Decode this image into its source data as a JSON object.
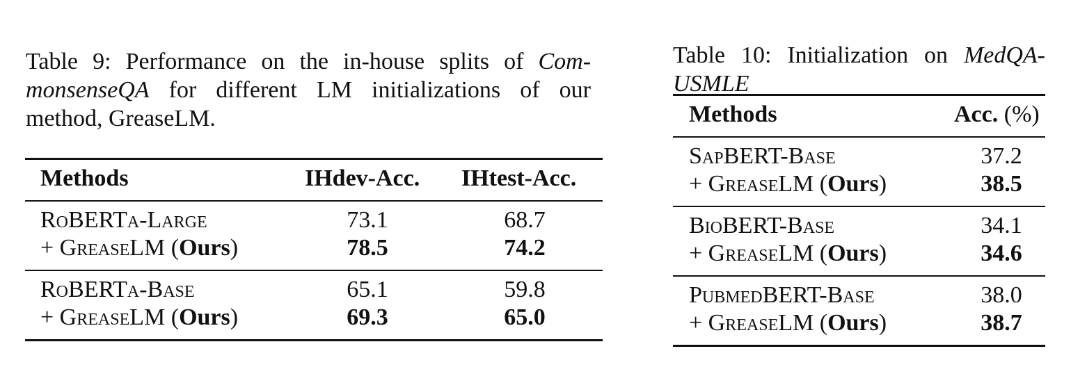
{
  "table9": {
    "caption": {
      "label": "Table 9:",
      "l1a": "Performance on the in-house splits of ",
      "l1b": "Com-",
      "l2a": "monsenseQA",
      "l2b": " for different LM initializations of our",
      "l3": "method, GreaseLM."
    },
    "headers": [
      "Methods",
      "IHdev-Acc.",
      "IHtest-Acc."
    ],
    "rows": [
      {
        "base": "RoBERTa-Large",
        "plus": "+ GreaseLM",
        "ours": "Ours",
        "dev_base": "73.1",
        "dev_ours": "78.5",
        "test_base": "68.7",
        "test_ours": "74.2"
      },
      {
        "base": "RoBERTa-Base",
        "plus": "+ GreaseLM",
        "ours": "Ours",
        "dev_base": "65.1",
        "dev_ours": "69.3",
        "test_base": "59.8",
        "test_ours": "65.0"
      }
    ]
  },
  "table10": {
    "caption": {
      "label": "Table 10:",
      "l1a": "Initialization on ",
      "l1b": "MedQA-",
      "l2": "USMLE"
    },
    "headers": {
      "methods": "Methods",
      "acc": "Acc.",
      "pct": "(%)"
    },
    "rows": [
      {
        "base": "SapBERT-Base",
        "plus": "+ GreaseLM",
        "ours": "Ours",
        "acc_base": "37.2",
        "acc_ours": "38.5"
      },
      {
        "base": "BioBERT-Base",
        "plus": "+ GreaseLM",
        "ours": "Ours",
        "acc_base": "34.1",
        "acc_ours": "34.6"
      },
      {
        "base": "PubmedBERT-Base",
        "plus": "+ GreaseLM",
        "ours": "Ours",
        "acc_base": "38.0",
        "acc_ours": "38.7"
      }
    ]
  }
}
